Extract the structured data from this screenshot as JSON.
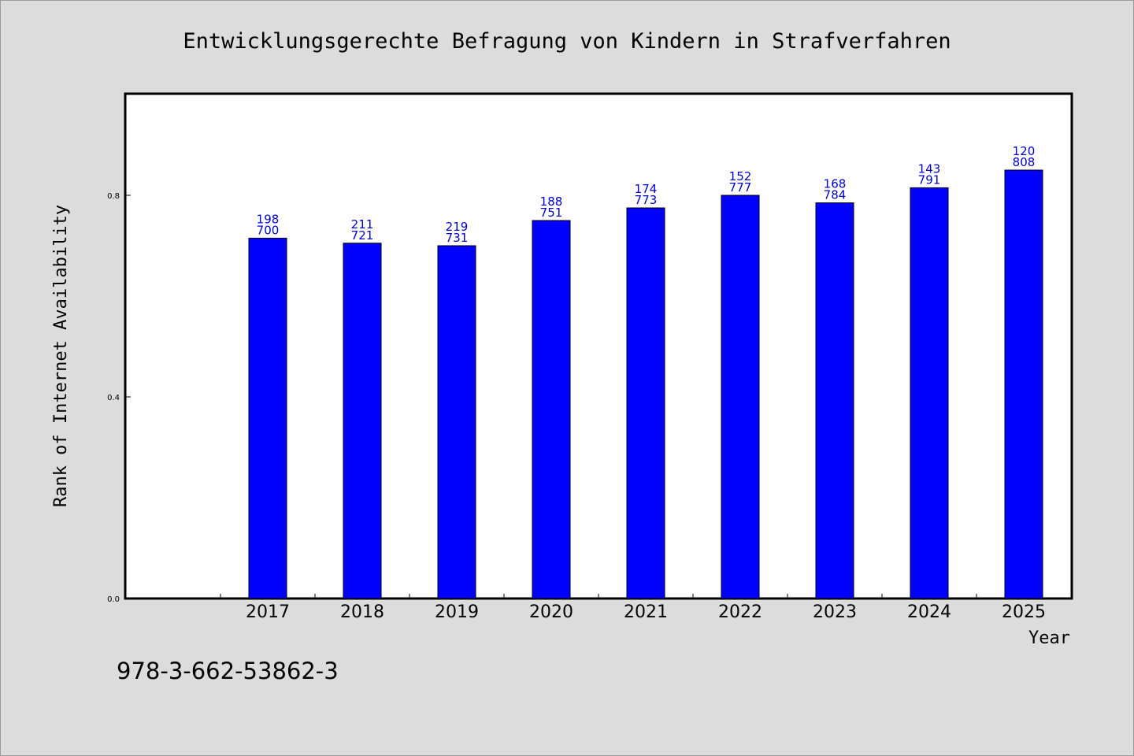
{
  "chart_data": {
    "type": "bar",
    "title": "Entwicklungsgerechte Befragung von Kindern in Strafverfahren",
    "xlabel": "Year",
    "ylabel": "Rank of Internet Availability",
    "categories": [
      "2017",
      "2018",
      "2019",
      "2020",
      "2021",
      "2022",
      "2023",
      "2024",
      "2025"
    ],
    "values": [
      0.715,
      0.705,
      0.7,
      0.75,
      0.775,
      0.8,
      0.785,
      0.815,
      0.85
    ],
    "bar_labels_top": [
      "198",
      "211",
      "219",
      "188",
      "174",
      "152",
      "168",
      "143",
      "120"
    ],
    "bar_labels_bottom": [
      "700",
      "721",
      "731",
      "751",
      "773",
      "777",
      "784",
      "791",
      "808"
    ],
    "yticks": [
      "0.0",
      "0.4",
      "0.8"
    ],
    "ytick_values": [
      0.0,
      0.4,
      0.8
    ],
    "ylim": [
      0,
      1.0
    ],
    "grid": false,
    "bar_color": "#0000ff",
    "label_color": "#0000cc"
  },
  "footer": {
    "isbn": "978-3-662-53862-3"
  }
}
